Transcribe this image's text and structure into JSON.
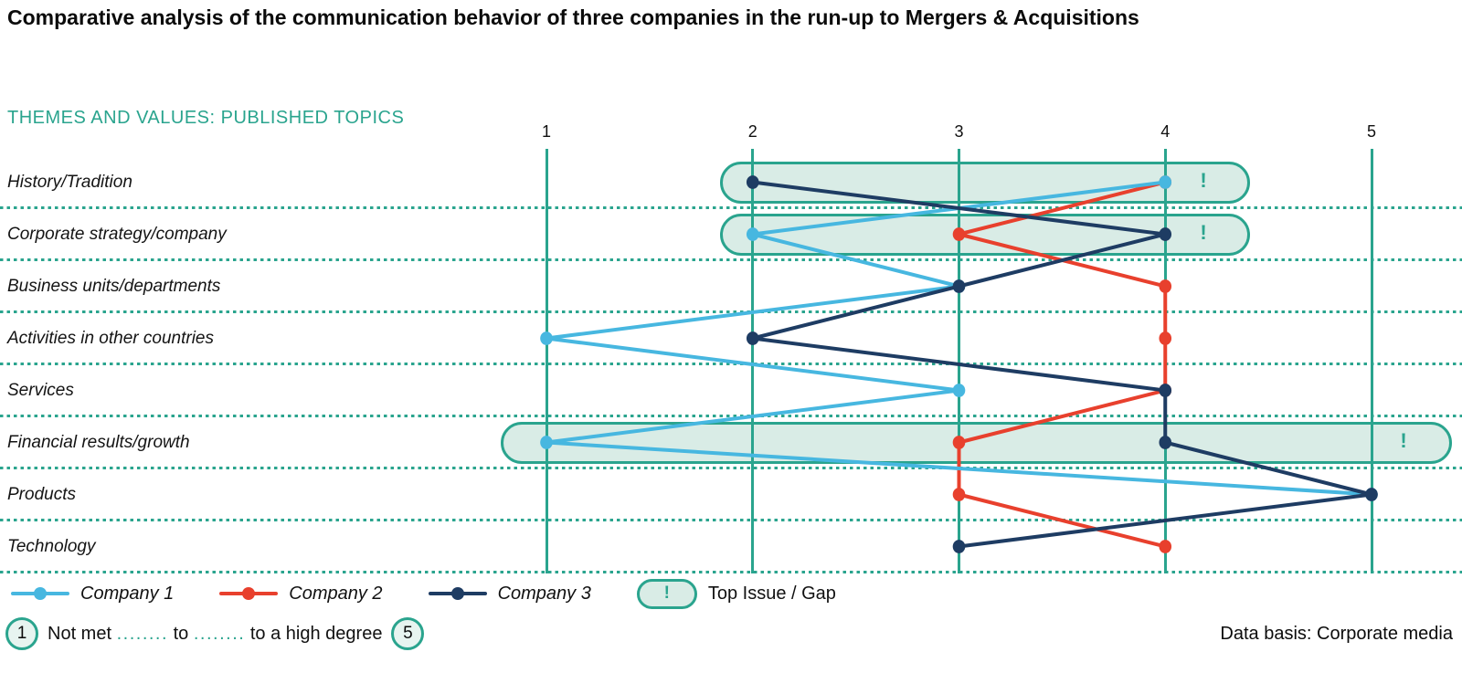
{
  "title": "Comparative analysis of the communication behavior of three companies in the run-up to Mergers & Acquisitions",
  "section_header": "THEMES AND VALUES: PUBLISHED TOPICS",
  "colors": {
    "teal": "#2aa48e",
    "highlight_fill": "#d9ece6",
    "company1": "#47b7e0",
    "company2": "#e8402d",
    "company3": "#1e3c63"
  },
  "chart_data": {
    "type": "line",
    "orientation": "categories-on-rows, value-axis-horizontal",
    "x_axis": {
      "ticks": [
        "1",
        "2",
        "3",
        "4",
        "5"
      ],
      "min": 1,
      "max": 5,
      "grid": "vertical solid teal lines, dotted teal row separators"
    },
    "categories": [
      "History/Tradition",
      "Corporate strategy/company",
      "Business units/departments",
      "Activities in other countries",
      "Services",
      "Financial results/growth",
      "Products",
      "Technology"
    ],
    "series": [
      {
        "name": "Company 1",
        "color": "#47b7e0",
        "values": [
          4,
          2,
          3,
          1,
          3,
          1,
          5,
          null
        ]
      },
      {
        "name": "Company 2",
        "color": "#e8402d",
        "values": [
          4,
          3,
          4,
          4,
          4,
          3,
          3,
          4
        ]
      },
      {
        "name": "Company 3",
        "color": "#1e3c63",
        "values": [
          2,
          4,
          3,
          2,
          4,
          4,
          5,
          3
        ]
      }
    ],
    "highlights": [
      {
        "category": "History/Tradition",
        "row": 0,
        "from": 1.84,
        "to": 4.41,
        "mark": "!",
        "mark_at": 4.2
      },
      {
        "category": "Corporate strategy/company",
        "row": 1,
        "from": 1.84,
        "to": 4.41,
        "mark": "!",
        "mark_at": 4.2
      },
      {
        "category": "Financial results/growth",
        "row": 5,
        "from": 0.78,
        "to": 5.39,
        "mark": "!",
        "mark_at": 5.17
      }
    ],
    "highlight_label": "Top Issue / Gap"
  },
  "legend": {
    "top_issue": {
      "mark": "!",
      "label": "Top Issue / Gap"
    }
  },
  "scale_note": {
    "min": "1",
    "max": "5",
    "parts": {
      "start": "Not met",
      "dots1": "........",
      "mid": "to",
      "dots2": "........",
      "end": "to a high degree"
    }
  },
  "footer": {
    "data_basis": "Data basis: Corporate media"
  }
}
